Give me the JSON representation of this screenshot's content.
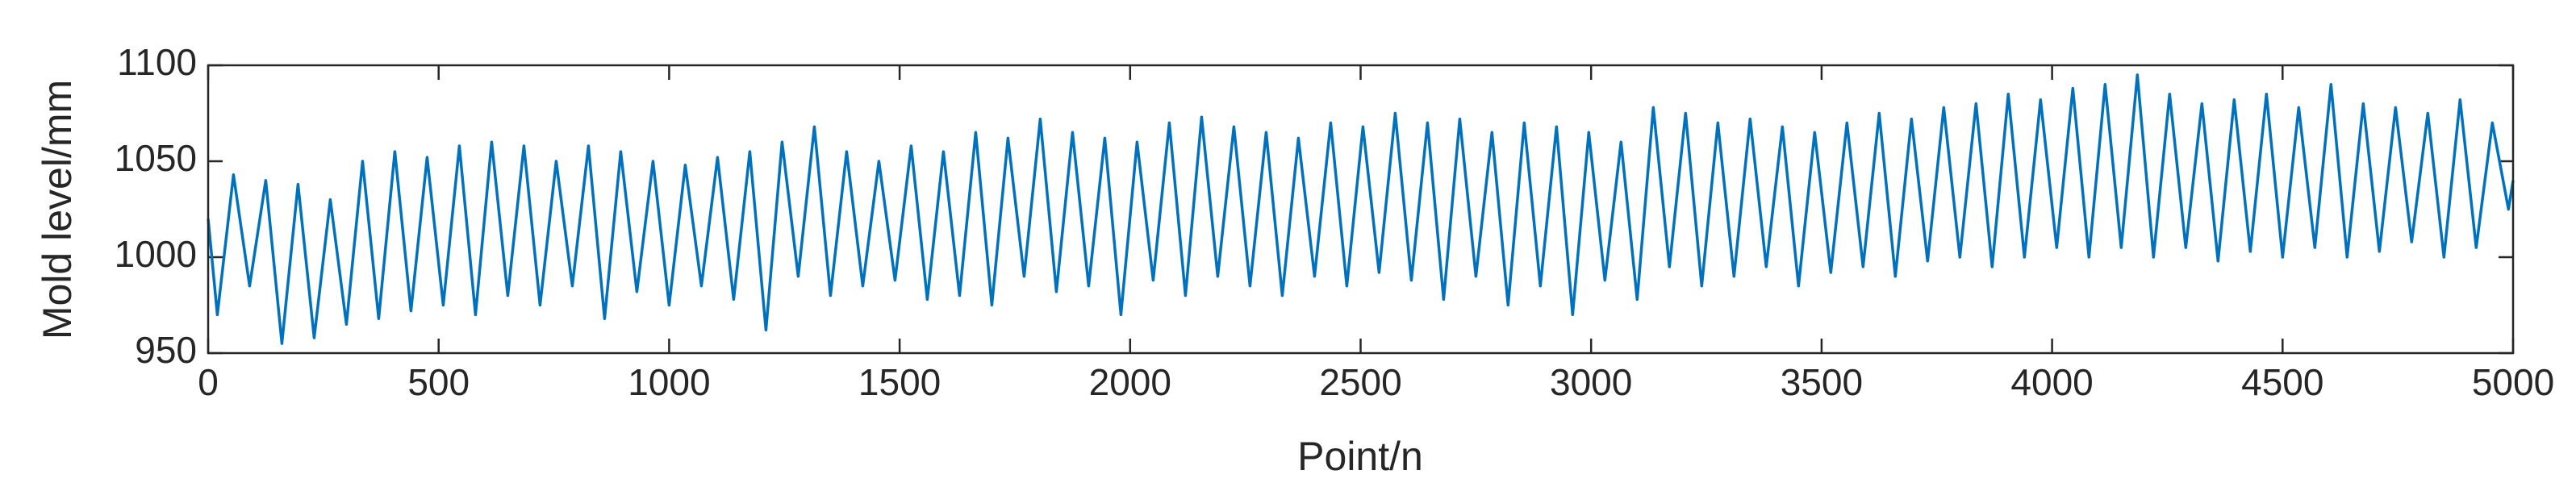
{
  "chart_data": {
    "type": "line",
    "xlabel": "Point/n",
    "ylabel": "Mold level/mm",
    "xlim": [
      0,
      5000
    ],
    "ylim": [
      950,
      1100
    ],
    "xticks": [
      0,
      500,
      1000,
      1500,
      2000,
      2500,
      3000,
      3500,
      4000,
      4500,
      5000
    ],
    "yticks": [
      950,
      1000,
      1050,
      1100
    ],
    "grid": false,
    "x": [
      0,
      20,
      55,
      90,
      125,
      160,
      195,
      230,
      265,
      300,
      335,
      370,
      405,
      440,
      475,
      510,
      545,
      580,
      615,
      650,
      685,
      720,
      755,
      790,
      825,
      860,
      895,
      930,
      965,
      1000,
      1035,
      1070,
      1105,
      1140,
      1175,
      1210,
      1245,
      1280,
      1315,
      1350,
      1385,
      1420,
      1455,
      1490,
      1525,
      1560,
      1595,
      1630,
      1665,
      1700,
      1735,
      1770,
      1805,
      1840,
      1875,
      1910,
      1945,
      1980,
      2015,
      2050,
      2085,
      2120,
      2155,
      2190,
      2225,
      2260,
      2295,
      2330,
      2365,
      2400,
      2435,
      2470,
      2505,
      2540,
      2575,
      2610,
      2645,
      2680,
      2715,
      2750,
      2785,
      2820,
      2855,
      2890,
      2925,
      2960,
      2995,
      3030,
      3065,
      3100,
      3135,
      3170,
      3205,
      3240,
      3275,
      3310,
      3345,
      3380,
      3415,
      3450,
      3485,
      3520,
      3555,
      3590,
      3625,
      3660,
      3695,
      3730,
      3765,
      3800,
      3835,
      3870,
      3905,
      3940,
      3975,
      4010,
      4045,
      4080,
      4115,
      4150,
      4185,
      4220,
      4255,
      4290,
      4325,
      4360,
      4395,
      4430,
      4465,
      4500,
      4535,
      4570,
      4605,
      4640,
      4675,
      4710,
      4745,
      4780,
      4815,
      4850,
      4885,
      4920,
      4955,
      4990,
      5000
    ],
    "series": [
      {
        "name": "Mold level",
        "color": "#0072bd",
        "values": [
          1020,
          970,
          1043,
          985,
          1040,
          955,
          1038,
          958,
          1030,
          965,
          1050,
          968,
          1055,
          972,
          1052,
          975,
          1058,
          970,
          1060,
          980,
          1058,
          975,
          1050,
          985,
          1058,
          968,
          1055,
          982,
          1050,
          975,
          1048,
          985,
          1052,
          978,
          1055,
          962,
          1060,
          990,
          1068,
          980,
          1055,
          985,
          1050,
          988,
          1058,
          978,
          1055,
          980,
          1065,
          975,
          1062,
          990,
          1072,
          982,
          1065,
          985,
          1062,
          970,
          1060,
          988,
          1070,
          980,
          1073,
          990,
          1068,
          985,
          1065,
          980,
          1062,
          990,
          1070,
          985,
          1068,
          992,
          1075,
          988,
          1070,
          978,
          1072,
          990,
          1065,
          975,
          1070,
          985,
          1068,
          970,
          1065,
          988,
          1060,
          978,
          1078,
          995,
          1075,
          985,
          1070,
          990,
          1072,
          995,
          1068,
          985,
          1065,
          992,
          1070,
          995,
          1075,
          990,
          1072,
          998,
          1078,
          1000,
          1080,
          995,
          1085,
          1000,
          1082,
          1005,
          1088,
          1000,
          1090,
          1005,
          1095,
          1000,
          1085,
          1005,
          1080,
          998,
          1082,
          1003,
          1085,
          1000,
          1078,
          1005,
          1090,
          1000,
          1080,
          1003,
          1078,
          1008,
          1075,
          1000,
          1082,
          1005,
          1070,
          1025,
          1040
        ]
      }
    ]
  }
}
